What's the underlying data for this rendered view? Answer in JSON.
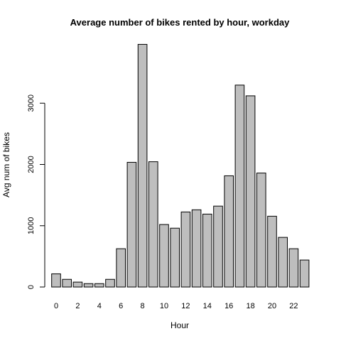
{
  "chart_data": {
    "type": "bar",
    "title": "Average number of bikes rented by hour, workday",
    "xlabel": "Hour",
    "ylabel": "Avg num of bikes",
    "categories": [
      "0",
      "1",
      "2",
      "3",
      "4",
      "5",
      "6",
      "7",
      "8",
      "9",
      "10",
      "11",
      "12",
      "13",
      "14",
      "15",
      "16",
      "17",
      "18",
      "19",
      "20",
      "21",
      "22",
      "23"
    ],
    "x_tick_labels": [
      "0",
      "2",
      "4",
      "6",
      "8",
      "10",
      "12",
      "14",
      "16",
      "18",
      "20",
      "22"
    ],
    "values": [
      215,
      125,
      80,
      55,
      55,
      125,
      625,
      2035,
      3960,
      2045,
      1020,
      960,
      1225,
      1260,
      1190,
      1320,
      1815,
      3295,
      3120,
      1860,
      1155,
      810,
      625,
      440
    ],
    "ylim": [
      0,
      4000
    ],
    "y_ticks": [
      0,
      1000,
      2000,
      3000
    ],
    "y_tick_labels": [
      "0",
      "1000",
      "2000",
      "3000"
    ],
    "bar_color": "#bebebe",
    "bar_border": "#000000",
    "grid": false,
    "legend": "none"
  }
}
